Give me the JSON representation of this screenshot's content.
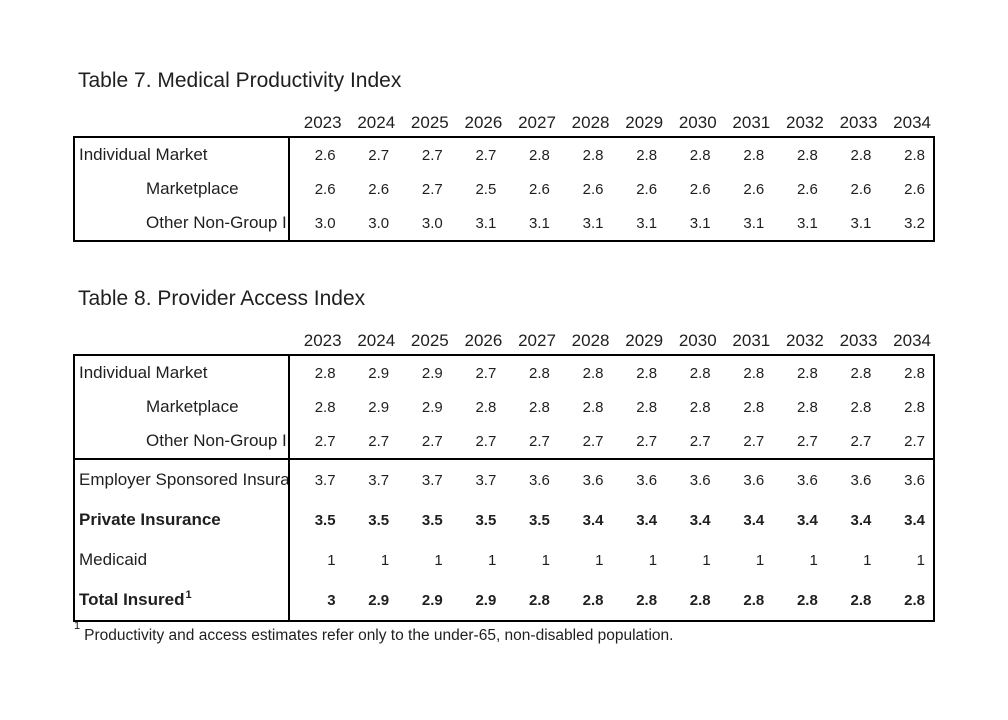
{
  "colors": {
    "background": "#ffffff",
    "text": "#1f1f1f",
    "border": "#000000"
  },
  "years": [
    "2023",
    "2024",
    "2025",
    "2026",
    "2027",
    "2028",
    "2029",
    "2030",
    "2031",
    "2032",
    "2033",
    "2034"
  ],
  "tables": [
    {
      "title": "Table 7. Medical Productivity Index",
      "sections": [
        {
          "rows": [
            {
              "label": "Individual Market",
              "indent": false,
              "bold": false,
              "values": [
                "2.6",
                "2.7",
                "2.7",
                "2.7",
                "2.8",
                "2.8",
                "2.8",
                "2.8",
                "2.8",
                "2.8",
                "2.8",
                "2.8"
              ]
            },
            {
              "label": "Marketplace",
              "indent": true,
              "bold": false,
              "values": [
                "2.6",
                "2.6",
                "2.7",
                "2.5",
                "2.6",
                "2.6",
                "2.6",
                "2.6",
                "2.6",
                "2.6",
                "2.6",
                "2.6"
              ]
            },
            {
              "label": "Other Non-Group I",
              "indent": true,
              "bold": false,
              "values": [
                "3.0",
                "3.0",
                "3.0",
                "3.1",
                "3.1",
                "3.1",
                "3.1",
                "3.1",
                "3.1",
                "3.1",
                "3.1",
                "3.2"
              ]
            }
          ]
        }
      ]
    },
    {
      "title": "Table 8. Provider Access Index",
      "sections": [
        {
          "rows": [
            {
              "label": "Individual Market",
              "indent": false,
              "bold": false,
              "values": [
                "2.8",
                "2.9",
                "2.9",
                "2.7",
                "2.8",
                "2.8",
                "2.8",
                "2.8",
                "2.8",
                "2.8",
                "2.8",
                "2.8"
              ]
            },
            {
              "label": "Marketplace",
              "indent": true,
              "bold": false,
              "values": [
                "2.8",
                "2.9",
                "2.9",
                "2.8",
                "2.8",
                "2.8",
                "2.8",
                "2.8",
                "2.8",
                "2.8",
                "2.8",
                "2.8"
              ]
            },
            {
              "label": "Other Non-Group I",
              "indent": true,
              "bold": false,
              "values": [
                "2.7",
                "2.7",
                "2.7",
                "2.7",
                "2.7",
                "2.7",
                "2.7",
                "2.7",
                "2.7",
                "2.7",
                "2.7",
                "2.7"
              ]
            }
          ]
        },
        {
          "rows": [
            {
              "label": "Employer Sponsored Insura",
              "indent": false,
              "bold": false,
              "values": [
                "3.7",
                "3.7",
                "3.7",
                "3.7",
                "3.6",
                "3.6",
                "3.6",
                "3.6",
                "3.6",
                "3.6",
                "3.6",
                "3.6"
              ]
            },
            {
              "label": "Private Insurance",
              "indent": false,
              "bold": true,
              "values": [
                "3.5",
                "3.5",
                "3.5",
                "3.5",
                "3.5",
                "3.4",
                "3.4",
                "3.4",
                "3.4",
                "3.4",
                "3.4",
                "3.4"
              ]
            },
            {
              "label": "Medicaid",
              "indent": false,
              "bold": false,
              "values": [
                "1",
                "1",
                "1",
                "1",
                "1",
                "1",
                "1",
                "1",
                "1",
                "1",
                "1",
                "1"
              ]
            },
            {
              "label": "Total Insured",
              "sup": "1",
              "indent": false,
              "bold": true,
              "values": [
                "3",
                "2.9",
                "2.9",
                "2.9",
                "2.8",
                "2.8",
                "2.8",
                "2.8",
                "2.8",
                "2.8",
                "2.8",
                "2.8"
              ]
            }
          ]
        }
      ]
    }
  ],
  "footnote": {
    "marker": "1",
    "text": "Productivity and access estimates refer only to the under-65, non-disabled population."
  }
}
